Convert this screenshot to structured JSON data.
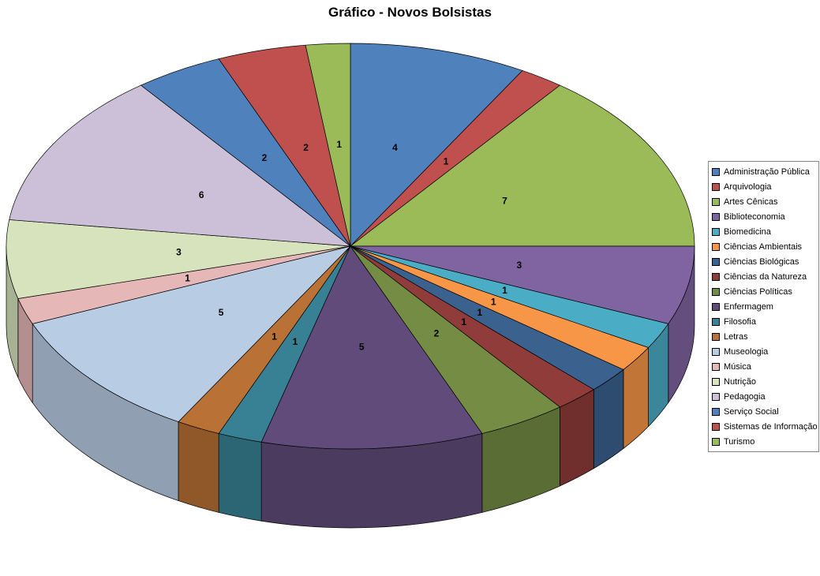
{
  "title": "Gráfico - Novos Bolsistas",
  "chart_data": {
    "type": "pie",
    "title": "Gráfico - Novos Bolsistas",
    "effect": "3d",
    "start_angle_deg": 0,
    "direction": "clockwise",
    "total": 48,
    "labels_shown": "value",
    "label_color": "#000000",
    "slice_border_color": "#000000",
    "legend_position": "right",
    "legend_border_color": "#868686",
    "background": "#FFFFFF",
    "categories": [
      "Administração Pública",
      "Arquivologia",
      "Artes Cênicas",
      "Biblioteconomia",
      "Biomedicina",
      "Ciências Ambientais",
      "Ciências Biológicas",
      "Ciências da Natureza",
      "Ciências Políticas",
      "Enfermagem",
      "Filosofia",
      "Letras",
      "Museologia",
      "Música",
      "Nutrição",
      "Pedagogia",
      "Serviço Social",
      "Sistemas de Informação",
      "Turismo"
    ],
    "values": [
      4,
      1,
      7,
      3,
      1,
      1,
      1,
      1,
      2,
      5,
      1,
      1,
      5,
      1,
      3,
      6,
      2,
      2,
      1
    ],
    "colors": [
      "#4F81BD",
      "#C0504D",
      "#9BBB59",
      "#8064A2",
      "#4BACC6",
      "#F79646",
      "#3B618E",
      "#903C3A",
      "#748C43",
      "#604B7A",
      "#388195",
      "#B97135",
      "#B8CCE4",
      "#E5B8B7",
      "#D6E3BC",
      "#CCC0D9",
      "#4F81BD",
      "#C0504D",
      "#9BBB59"
    ]
  }
}
